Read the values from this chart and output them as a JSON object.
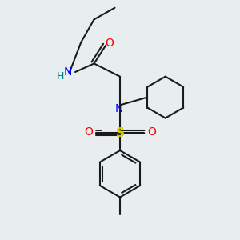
{
  "background_color": "#e8eef0",
  "bond_color": "#1a1a1a",
  "N_color": "#0000FF",
  "O_color": "#FF0000",
  "S_color": "#CCCC00",
  "H_color": "#008080",
  "lw": 1.5,
  "font_size": 10,
  "xlim": [
    0.0,
    3.0
  ],
  "ylim": [
    -0.5,
    3.2
  ]
}
